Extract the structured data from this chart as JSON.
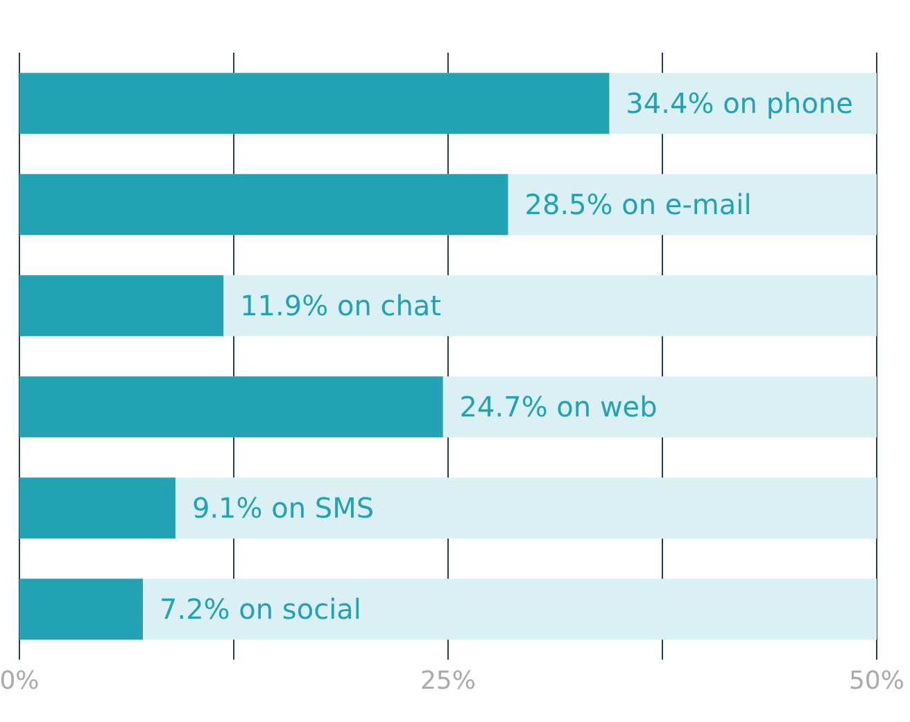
{
  "chart_data": {
    "type": "bar",
    "orientation": "horizontal",
    "categories": [
      null,
      null,
      null,
      null,
      null,
      null
    ],
    "values": [
      34.4,
      28.5,
      11.9,
      24.7,
      9.1,
      7.2
    ],
    "value_labels": [
      "34.4% on phone",
      "28.5% on e-mail",
      "11.9% on chat",
      "24.7% on web",
      "9.1% on SMS",
      "7.2% on social"
    ],
    "color": "#22a2b2",
    "xlim": [
      0,
      50
    ],
    "xticks": [
      {
        "value": 0,
        "label": "0%"
      },
      {
        "value": 12.5,
        "label": null
      },
      {
        "value": 25,
        "label": "25%"
      },
      {
        "value": 37.5,
        "label": null
      },
      {
        "value": 50,
        "label": "50%"
      }
    ],
    "grid": "x"
  }
}
